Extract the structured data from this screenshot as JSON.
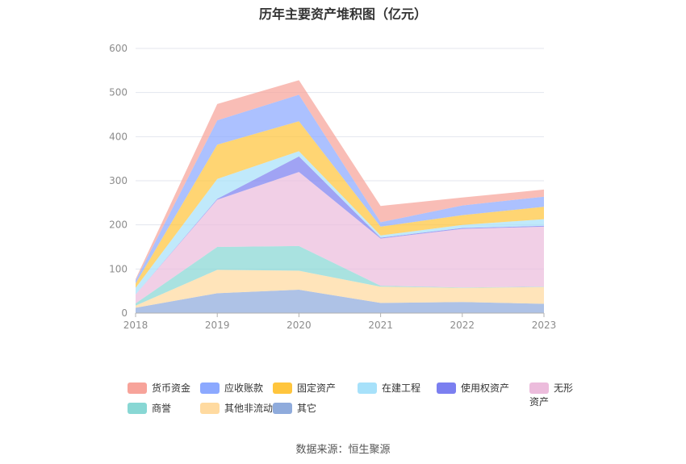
{
  "title": "历年主要资产堆积图（亿元）",
  "source": "数据来源：恒生聚源",
  "chart_data": {
    "type": "area",
    "stacked": true,
    "x": [
      "2018",
      "2019",
      "2020",
      "2021",
      "2022",
      "2023"
    ],
    "ylim": [
      0,
      600
    ],
    "yticks": [
      0,
      100,
      200,
      300,
      400,
      500,
      600
    ],
    "grid": true,
    "legend_position": "bottom",
    "series": [
      {
        "name": "其它",
        "color": "#8fabdc",
        "values": [
          12,
          45,
          53,
          23,
          25,
          21
        ]
      },
      {
        "name": "其他非流动资产",
        "color": "#ffdaa0",
        "values": [
          5,
          53,
          43,
          37,
          32,
          38
        ]
      },
      {
        "name": "商誉",
        "color": "#88d7d4",
        "values": [
          5,
          52,
          56,
          2,
          1,
          1
        ]
      },
      {
        "name": "无形资产",
        "color": "#ecbcdc",
        "values": [
          20,
          107,
          168,
          107,
          133,
          136
        ]
      },
      {
        "name": "使用权资产",
        "color": "#7b7ff0",
        "values": [
          0,
          2,
          35,
          2,
          2,
          2
        ]
      },
      {
        "name": "在建工程",
        "color": "#a7e1fa",
        "values": [
          15,
          45,
          12,
          5,
          7,
          15
        ]
      },
      {
        "name": "固定资产",
        "color": "#ffc53d",
        "values": [
          10,
          78,
          68,
          20,
          22,
          28
        ]
      },
      {
        "name": "应收账款",
        "color": "#8ca9ff",
        "values": [
          7,
          55,
          60,
          10,
          22,
          23
        ]
      },
      {
        "name": "货币资金",
        "color": "#f7a39a",
        "values": [
          3,
          37,
          33,
          37,
          18,
          16
        ]
      }
    ],
    "legend_order": [
      "货币资金",
      "应收账款",
      "固定资产",
      "在建工程",
      "使用权资产",
      "无形资产",
      "商誉",
      "其他非流动资产",
      "其它"
    ]
  }
}
